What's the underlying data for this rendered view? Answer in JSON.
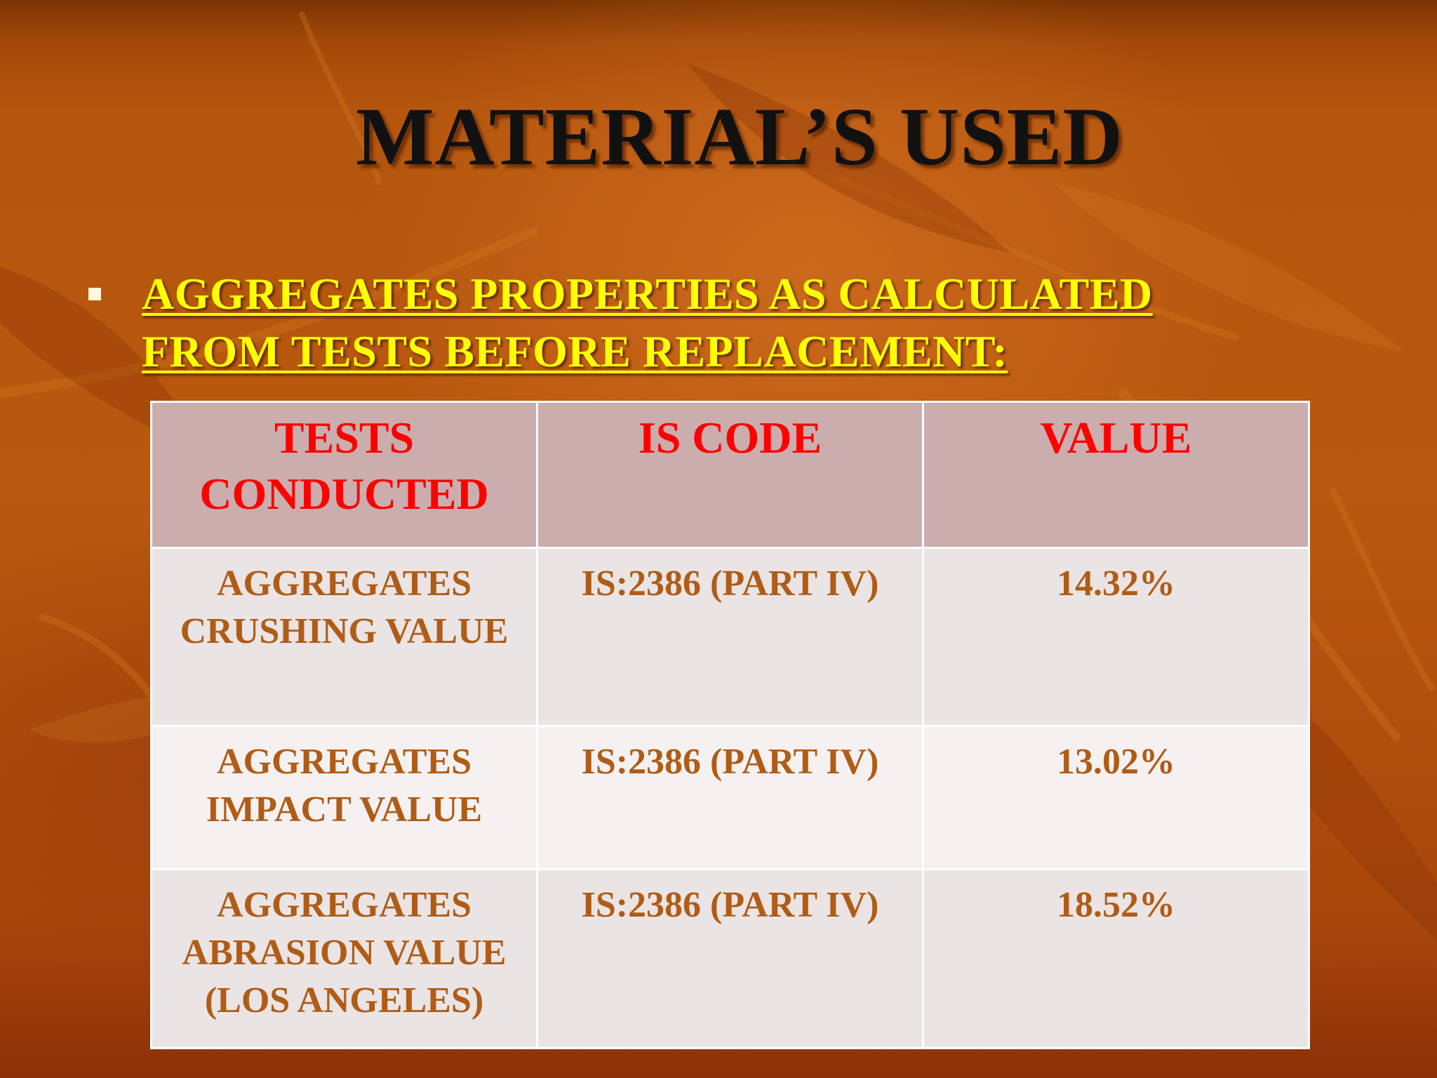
{
  "slide": {
    "title": "MATERIAL’S USED",
    "bullet_text": "AGGREGATES PROPERTIES AS CALCULATED FROM TESTS BEFORE REPLACEMENT:"
  },
  "table": {
    "headers": [
      "TESTS CONDUCTED",
      "IS CODE",
      "VALUE"
    ],
    "rows": [
      [
        "AGGREGATES CRUSHING VALUE",
        "IS:2386 (PART IV)",
        "14.32%"
      ],
      [
        "AGGREGATES IMPACT VALUE",
        "IS:2386 (PART IV)",
        "13.02%"
      ],
      [
        "AGGREGATES ABRASION VALUE (LOS ANGELES)",
        "IS:2386 (PART IV)",
        "18.52%"
      ]
    ]
  },
  "colors": {
    "background": "#b5560e",
    "title": "#111111",
    "bullet_text": "#ffff00",
    "header_text": "#ff0000",
    "header_fill": "#cbadae",
    "cell_text": "#b05c16"
  }
}
